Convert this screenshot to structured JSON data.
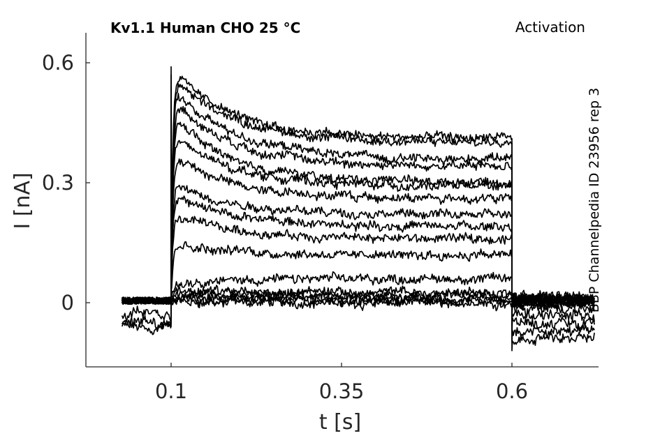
{
  "figure": {
    "title_left": "Kv1.1  Human  CHO  25 °C",
    "title_right": "Activation",
    "side_note": "BBP Channelpedia ID 23956 rep 3"
  },
  "chart_data": {
    "type": "line",
    "xlabel": "t [s]",
    "ylabel": "I [nA]",
    "xlim": [
      0.0,
      0.75
    ],
    "ylim": [
      -0.16,
      0.68
    ],
    "xticks": [
      0.1,
      0.35,
      0.6
    ],
    "xtick_labels": [
      "0.1",
      "0.35",
      "0.6"
    ],
    "yticks": [
      0,
      0.3,
      0.6
    ],
    "ytick_labels": [
      "0",
      "0.3",
      "0.6"
    ],
    "grid": false,
    "legend": "none",
    "line_color": "#000000",
    "step_window": [
      0.1,
      0.6
    ],
    "trace_time_range": [
      0.028,
      0.722
    ],
    "series": [
      {
        "pre": -0.06,
        "peak": 0.0,
        "plateau": 0.0,
        "tail": -0.09
      },
      {
        "pre": -0.05,
        "peak": 0.01,
        "plateau": 0.005,
        "tail": -0.07
      },
      {
        "pre": -0.03,
        "peak": 0.015,
        "plateau": 0.01,
        "tail": -0.05
      },
      {
        "pre": 0.005,
        "peak": 0.02,
        "plateau": 0.02,
        "tail": -0.03
      },
      {
        "pre": 0.005,
        "peak": 0.03,
        "plateau": 0.025,
        "tail": -0.015
      },
      {
        "pre": 0.005,
        "peak": 0.05,
        "plateau": 0.06,
        "tail": 0.0
      },
      {
        "pre": 0.005,
        "peak": 0.15,
        "plateau": 0.12,
        "tail": 0.01
      },
      {
        "pre": 0.005,
        "peak": 0.22,
        "plateau": 0.16,
        "tail": 0.005
      },
      {
        "pre": 0.005,
        "peak": 0.27,
        "plateau": 0.19,
        "tail": 0.01
      },
      {
        "pre": 0.005,
        "peak": 0.3,
        "plateau": 0.22,
        "tail": 0.005
      },
      {
        "pre": 0.005,
        "peak": 0.37,
        "plateau": 0.26,
        "tail": 0.01
      },
      {
        "pre": 0.005,
        "peak": 0.42,
        "plateau": 0.29,
        "tail": 0.005
      },
      {
        "pre": 0.005,
        "peak": 0.47,
        "plateau": 0.3,
        "tail": 0.01
      },
      {
        "pre": 0.005,
        "peak": 0.51,
        "plateau": 0.34,
        "tail": 0.005
      },
      {
        "pre": 0.005,
        "peak": 0.54,
        "plateau": 0.36,
        "tail": 0.01
      },
      {
        "pre": 0.005,
        "peak": 0.57,
        "plateau": 0.4,
        "tail": 0.005
      },
      {
        "pre": 0.005,
        "peak": 0.59,
        "plateau": 0.41,
        "tail": 0.01
      }
    ]
  }
}
